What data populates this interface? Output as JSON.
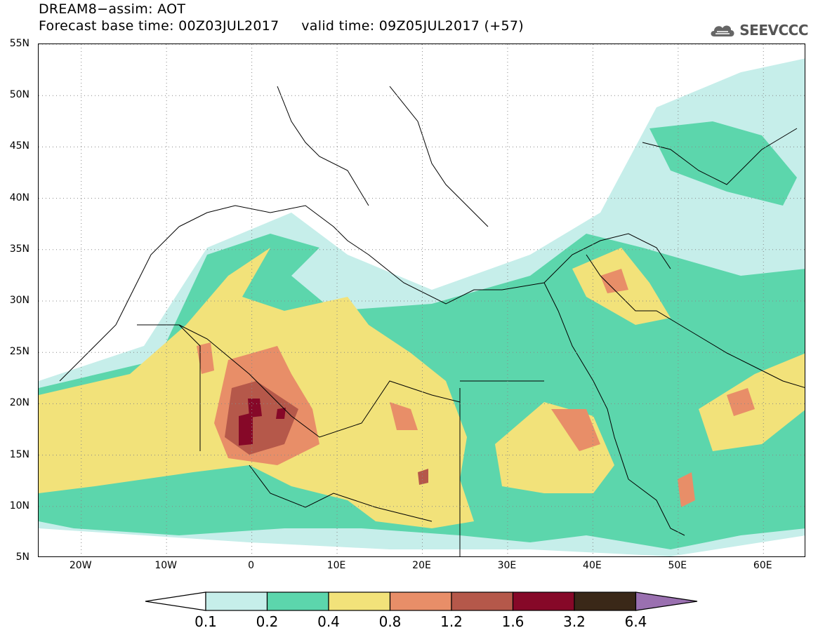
{
  "header": {
    "title_line1": "DREAM8−assim: AOT",
    "title_line2": "Forecast base time: 00Z03JUL2017     valid time: 09Z05JUL2017 (+57)",
    "logo_text": "SEEVCCC",
    "logo_icon": "cloud-icon"
  },
  "map": {
    "lon_range": [
      -25,
      65
    ],
    "lat_range": [
      5,
      55
    ],
    "lat_labels": [
      "5N",
      "10N",
      "15N",
      "20N",
      "25N",
      "30N",
      "35N",
      "40N",
      "45N",
      "50N",
      "55N"
    ],
    "lat_values": [
      5,
      10,
      15,
      20,
      25,
      30,
      35,
      40,
      45,
      50,
      55
    ],
    "lon_labels": [
      "20W",
      "10W",
      "0",
      "10E",
      "20E",
      "30E",
      "40E",
      "50E",
      "60E"
    ],
    "lon_values": [
      -20,
      -10,
      0,
      10,
      20,
      30,
      40,
      50,
      60
    ],
    "gridlines": "dotted"
  },
  "legend": {
    "thresholds": [
      "0.1",
      "0.2",
      "0.4",
      "0.8",
      "1.2",
      "1.6",
      "3.2",
      "6.4"
    ],
    "colors": [
      "#c6eeea",
      "#5cd6ac",
      "#f2e27a",
      "#e88e68",
      "#b5584a",
      "#860828",
      "#3a2818",
      "#9a70b0"
    ],
    "under_color": "#ffffff",
    "over_color": "#9a70b0"
  }
}
